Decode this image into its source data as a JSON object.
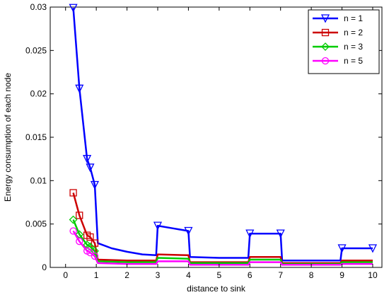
{
  "chart_data": {
    "type": "line",
    "title": "",
    "xlabel": "distance to sink",
    "ylabel": "Energy consumption of each node",
    "xlim": [
      -0.5,
      10.3
    ],
    "ylim": [
      0,
      0.03
    ],
    "x_ticks": [
      0,
      1,
      2,
      3,
      4,
      5,
      6,
      7,
      8,
      9,
      10
    ],
    "y_ticks": [
      0,
      0.005,
      0.01,
      0.015,
      0.02,
      0.025,
      0.03
    ],
    "x_tick_labels": [
      "0",
      "1",
      "2",
      "3",
      "4",
      "5",
      "6",
      "7",
      "8",
      "9",
      "10"
    ],
    "y_tick_labels": [
      "0",
      "0.005",
      "0.01",
      "0.015",
      "0.02",
      "0.025",
      "0.03"
    ],
    "grid": false,
    "legend_position": "top-right",
    "series": [
      {
        "name": "n = 1",
        "color": "#0000ff",
        "marker": "triangle-down",
        "x": [
          0.25,
          0.45,
          0.7,
          0.8,
          0.95,
          1.05,
          1.5,
          2.0,
          2.5,
          2.95,
          3.0,
          3.5,
          4.0,
          4.05,
          5.0,
          5.95,
          6.0,
          6.5,
          7.0,
          7.05,
          8.0,
          8.95,
          9.0,
          10.0
        ],
        "y": [
          0.0299,
          0.0206,
          0.0125,
          0.0115,
          0.0095,
          0.0028,
          0.0022,
          0.0018,
          0.0015,
          0.0014,
          0.0048,
          0.0045,
          0.0042,
          0.0012,
          0.0011,
          0.0011,
          0.0039,
          0.0039,
          0.0039,
          0.0008,
          0.0008,
          0.0008,
          0.0022,
          0.0022
        ],
        "markers_x": [
          0.25,
          0.45,
          0.7,
          0.8,
          0.95,
          3.0,
          4.0,
          6.0,
          7.0,
          9.0,
          10.0
        ],
        "markers_y": [
          0.0299,
          0.0206,
          0.0125,
          0.0115,
          0.0095,
          0.0048,
          0.0042,
          0.0039,
          0.0039,
          0.0022,
          0.0022
        ]
      },
      {
        "name": "n = 2",
        "color": "#cc0000",
        "marker": "square",
        "x": [
          0.25,
          0.45,
          0.7,
          0.8,
          0.95,
          1.05,
          2.0,
          2.95,
          3.0,
          4.0,
          4.05,
          5.0,
          5.95,
          6.0,
          7.0,
          7.05,
          8.95,
          9.0,
          10.0
        ],
        "y": [
          0.0086,
          0.006,
          0.0037,
          0.0035,
          0.0028,
          0.0009,
          0.0008,
          0.0008,
          0.0015,
          0.0014,
          0.0006,
          0.0006,
          0.0006,
          0.0012,
          0.0012,
          0.0005,
          0.0005,
          0.0008,
          0.0008
        ],
        "markers_x": [
          0.25,
          0.45,
          0.7,
          0.8,
          0.95
        ],
        "markers_y": [
          0.0086,
          0.006,
          0.0037,
          0.0035,
          0.0028
        ]
      },
      {
        "name": "n = 3",
        "color": "#00cc00",
        "marker": "diamond",
        "x": [
          0.25,
          0.45,
          0.7,
          0.8,
          0.95,
          1.05,
          2.0,
          2.95,
          3.0,
          4.0,
          4.05,
          5.0,
          5.95,
          6.0,
          7.0,
          7.05,
          8.95,
          9.0,
          10.0
        ],
        "y": [
          0.0055,
          0.0038,
          0.0026,
          0.0024,
          0.0019,
          0.0007,
          0.0006,
          0.0006,
          0.0011,
          0.001,
          0.0005,
          0.0005,
          0.0005,
          0.0009,
          0.0009,
          0.0004,
          0.0004,
          0.0006,
          0.0006
        ],
        "markers_x": [
          0.25,
          0.45,
          0.7,
          0.8,
          0.95
        ],
        "markers_y": [
          0.0055,
          0.0038,
          0.0026,
          0.0024,
          0.0019
        ]
      },
      {
        "name": "n = 5",
        "color": "#ff00ff",
        "marker": "circle",
        "x": [
          0.25,
          0.45,
          0.7,
          0.8,
          0.95,
          1.05,
          2.0,
          2.95,
          3.0,
          4.0,
          4.05,
          5.0,
          5.95,
          6.0,
          7.0,
          7.05,
          8.95,
          9.0,
          10.0
        ],
        "y": [
          0.0042,
          0.003,
          0.0019,
          0.0017,
          0.0013,
          0.0005,
          0.0004,
          0.0004,
          0.0007,
          0.0007,
          0.0003,
          0.0003,
          0.0003,
          0.0006,
          0.0006,
          0.0003,
          0.0003,
          0.0004,
          0.0004
        ],
        "markers_x": [
          0.25,
          0.45,
          0.7,
          0.8,
          0.95
        ],
        "markers_y": [
          0.0042,
          0.003,
          0.0019,
          0.0017,
          0.0013
        ]
      }
    ]
  }
}
